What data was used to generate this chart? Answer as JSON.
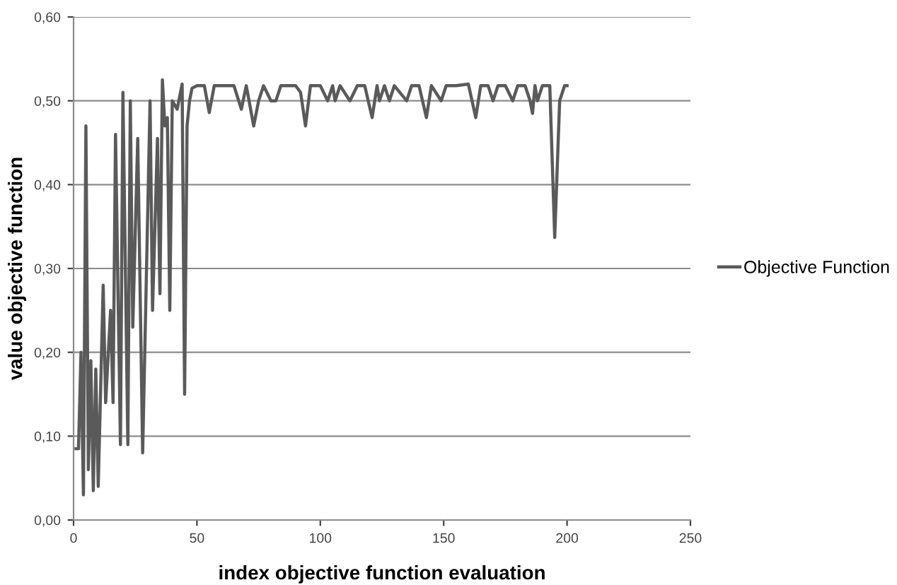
{
  "chart_data": {
    "type": "line",
    "xlabel": "index objective function evaluation",
    "ylabel": "value objective function",
    "series": [
      {
        "name": "Objective Function",
        "color": "#5a5a5a",
        "x": [
          1,
          2,
          3,
          4,
          5,
          6,
          7,
          8,
          9,
          10,
          12,
          13,
          15,
          16,
          17,
          19,
          20,
          22,
          23,
          24,
          26,
          28,
          31,
          32,
          34,
          35,
          36,
          37,
          38,
          39,
          40,
          42,
          44,
          45,
          46,
          47,
          48,
          50,
          53,
          55,
          57,
          60,
          62,
          65,
          68,
          70,
          73,
          75,
          77,
          80,
          82,
          84,
          86,
          90,
          92,
          94,
          96,
          100,
          103,
          105,
          106,
          108,
          112,
          115,
          118,
          121,
          123,
          124,
          126,
          128,
          130,
          135,
          137,
          140,
          143,
          145,
          149,
          151,
          155,
          160,
          163,
          165,
          168,
          170,
          172,
          175,
          178,
          180,
          183,
          185,
          186,
          187,
          188,
          190,
          193,
          195,
          197,
          199,
          200
        ],
        "values": [
          0.085,
          0.085,
          0.2,
          0.03,
          0.47,
          0.06,
          0.19,
          0.035,
          0.18,
          0.04,
          0.28,
          0.14,
          0.25,
          0.14,
          0.46,
          0.09,
          0.51,
          0.09,
          0.5,
          0.23,
          0.455,
          0.08,
          0.5,
          0.25,
          0.455,
          0.27,
          0.525,
          0.47,
          0.48,
          0.25,
          0.5,
          0.49,
          0.52,
          0.15,
          0.47,
          0.5,
          0.515,
          0.518,
          0.518,
          0.486,
          0.518,
          0.518,
          0.518,
          0.518,
          0.49,
          0.518,
          0.47,
          0.5,
          0.518,
          0.5,
          0.5,
          0.518,
          0.518,
          0.518,
          0.51,
          0.47,
          0.518,
          0.518,
          0.5,
          0.518,
          0.5,
          0.518,
          0.5,
          0.518,
          0.518,
          0.48,
          0.518,
          0.5,
          0.518,
          0.5,
          0.518,
          0.5,
          0.518,
          0.518,
          0.48,
          0.518,
          0.5,
          0.518,
          0.518,
          0.52,
          0.48,
          0.518,
          0.518,
          0.5,
          0.518,
          0.518,
          0.5,
          0.518,
          0.518,
          0.5,
          0.485,
          0.518,
          0.5,
          0.518,
          0.518,
          0.337,
          0.5,
          0.518,
          0.518
        ]
      }
    ],
    "xlim": [
      0,
      250
    ],
    "xticks": [
      0,
      50,
      100,
      150,
      200,
      250
    ],
    "ylim": [
      0,
      0.6
    ],
    "yticks": [
      {
        "value": 0,
        "label": "0,00"
      },
      {
        "value": 0.1,
        "label": "0,10"
      },
      {
        "value": 0.2,
        "label": "0,20"
      },
      {
        "value": 0.3,
        "label": "0,30"
      },
      {
        "value": 0.4,
        "label": "0,40"
      },
      {
        "value": 0.5,
        "label": "0,50"
      },
      {
        "value": 0.6,
        "label": "0,60"
      }
    ],
    "grid": "y",
    "legend": "right",
    "marker": "none",
    "line_style": "solid"
  }
}
